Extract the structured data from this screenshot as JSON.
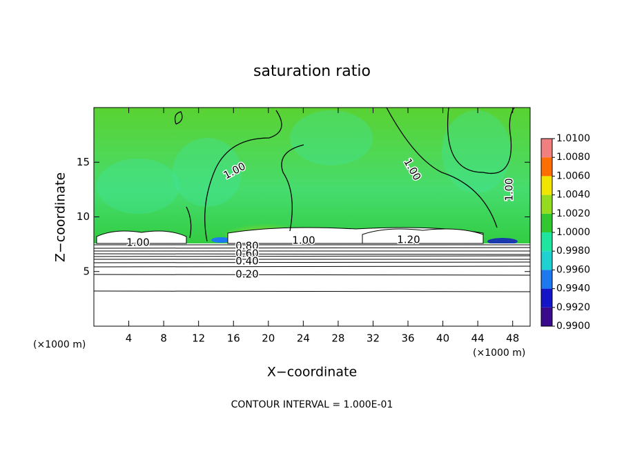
{
  "chart_data": {
    "type": "contour",
    "title": "saturation ratio",
    "x_label": "X−coordinate",
    "y_label": "Z−coordinate",
    "x_unit_left": "(×1000 m)",
    "x_unit_right": "(×1000 m)",
    "footer": "CONTOUR INTERVAL = 1.000E-01",
    "xlim": [
      0,
      50
    ],
    "ylim": [
      0,
      20
    ],
    "xticks": [
      4,
      8,
      12,
      16,
      20,
      24,
      28,
      32,
      36,
      40,
      44,
      48
    ],
    "yticks": [
      5,
      10,
      15
    ],
    "contour_labels": [
      "1.00",
      "1.00",
      "1.00",
      "1.00",
      "1.00",
      "1.20",
      "0.80",
      "0.60",
      "0.40",
      "0.20"
    ],
    "colorbar": {
      "ticks": [
        {
          "value": 0.99,
          "label": "0.9900"
        },
        {
          "value": 0.992,
          "label": "0.9920"
        },
        {
          "value": 0.994,
          "label": "0.9940"
        },
        {
          "value": 0.996,
          "label": "0.9960"
        },
        {
          "value": 0.998,
          "label": "0.9980"
        },
        {
          "value": 1.0,
          "label": "1.0000"
        },
        {
          "value": 1.002,
          "label": "1.0020"
        },
        {
          "value": 1.004,
          "label": "1.0040"
        },
        {
          "value": 1.006,
          "label": "1.0060"
        },
        {
          "value": 1.008,
          "label": "1.0080"
        },
        {
          "value": 1.01,
          "label": "1.0100"
        }
      ],
      "colors": [
        "#3a0a8c",
        "#1414c8",
        "#1e78f0",
        "#1ed2d2",
        "#1ee6a0",
        "#32c832",
        "#96dc1e",
        "#f0e600",
        "#ff6e00",
        "#f08080"
      ]
    }
  }
}
